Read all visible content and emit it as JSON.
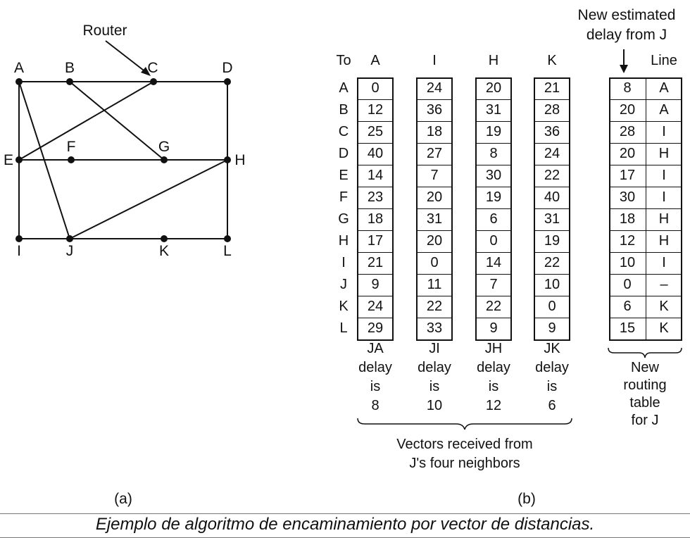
{
  "router_label": "Router",
  "nodes": [
    "A",
    "B",
    "C",
    "D",
    "E",
    "F",
    "G",
    "H",
    "I",
    "J",
    "K",
    "L"
  ],
  "part_a_label": "(a)",
  "part_b_label": "(b)",
  "table": {
    "to_label": "To",
    "rows": [
      "A",
      "B",
      "C",
      "D",
      "E",
      "F",
      "G",
      "H",
      "I",
      "J",
      "K",
      "L"
    ],
    "neighbor_columns": [
      {
        "header": "A",
        "values": [
          "0",
          "12",
          "25",
          "40",
          "14",
          "23",
          "18",
          "17",
          "21",
          "9",
          "24",
          "29"
        ],
        "footer": [
          "JA",
          "delay",
          "is",
          "8"
        ]
      },
      {
        "header": "I",
        "values": [
          "24",
          "36",
          "18",
          "27",
          "7",
          "20",
          "31",
          "20",
          "0",
          "11",
          "22",
          "33"
        ],
        "footer": [
          "JI",
          "delay",
          "is",
          "10"
        ]
      },
      {
        "header": "H",
        "values": [
          "20",
          "31",
          "19",
          "8",
          "30",
          "19",
          "6",
          "0",
          "14",
          "7",
          "22",
          "9"
        ],
        "footer": [
          "JH",
          "delay",
          "is",
          "12"
        ]
      },
      {
        "header": "K",
        "values": [
          "21",
          "28",
          "36",
          "24",
          "22",
          "40",
          "31",
          "19",
          "22",
          "10",
          "0",
          "9"
        ],
        "footer": [
          "JK",
          "delay",
          "is",
          "6"
        ]
      }
    ],
    "new_table": {
      "delay": [
        "8",
        "20",
        "28",
        "20",
        "17",
        "30",
        "18",
        "12",
        "10",
        "0",
        "6",
        "15"
      ],
      "line_header": "Line",
      "line": [
        "A",
        "A",
        "I",
        "H",
        "I",
        "I",
        "H",
        "H",
        "I",
        "–",
        "K",
        "K"
      ]
    },
    "new_estimate_label": [
      "New estimated",
      "delay from J"
    ],
    "new_table_caption": [
      "New",
      "routing",
      "table",
      "for J"
    ],
    "vectors_caption": [
      "Vectors received from",
      "J's four neighbors"
    ]
  },
  "caption": "Ejemplo de algoritmo de encaminamiento por vector de distancias."
}
